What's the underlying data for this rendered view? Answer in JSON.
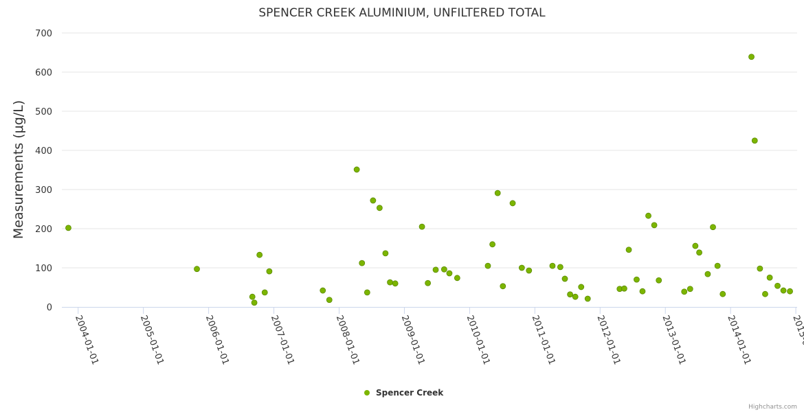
{
  "chart_data": {
    "type": "scatter",
    "title": "SPENCER CREEK ALUMINIUM, UNFILTERED TOTAL",
    "xlabel": "",
    "ylabel": "Measurements (μg/L)",
    "ylim": [
      0,
      700
    ],
    "xlim": [
      2003.75,
      2015.02
    ],
    "yticks": [
      0,
      100,
      200,
      300,
      400,
      500,
      600,
      700
    ],
    "xticks": [
      {
        "label": "2004-01-01",
        "value": 2004
      },
      {
        "label": "2005-01-01",
        "value": 2005
      },
      {
        "label": "2006-01-01",
        "value": 2006
      },
      {
        "label": "2007-01-01",
        "value": 2007
      },
      {
        "label": "2008-01-01",
        "value": 2008
      },
      {
        "label": "2009-01-01",
        "value": 2009
      },
      {
        "label": "2010-01-01",
        "value": 2010
      },
      {
        "label": "2011-01-01",
        "value": 2011
      },
      {
        "label": "2012-01-01",
        "value": 2012
      },
      {
        "label": "2013-01-01",
        "value": 2013
      },
      {
        "label": "2014-01-01",
        "value": 2014
      },
      {
        "label": "2015-01-01",
        "value": 2015
      }
    ],
    "grid": true,
    "legend_position": "bottom-center",
    "series": [
      {
        "name": "Spencer Creek",
        "color": "#7cb500",
        "x": [
          2003.85,
          2005.82,
          2006.67,
          2006.7,
          2006.78,
          2006.86,
          2006.93,
          2007.75,
          2007.85,
          2008.27,
          2008.35,
          2008.43,
          2008.52,
          2008.62,
          2008.71,
          2008.78,
          2008.86,
          2009.27,
          2009.36,
          2009.48,
          2009.61,
          2009.69,
          2009.81,
          2010.28,
          2010.35,
          2010.43,
          2010.51,
          2010.66,
          2010.8,
          2010.91,
          2011.27,
          2011.39,
          2011.46,
          2011.54,
          2011.62,
          2011.71,
          2011.81,
          2012.3,
          2012.37,
          2012.44,
          2012.56,
          2012.65,
          2012.74,
          2012.83,
          2012.9,
          2013.29,
          2013.38,
          2013.46,
          2013.52,
          2013.65,
          2013.73,
          2013.8,
          2013.88,
          2014.32,
          2014.37,
          2014.45,
          2014.53,
          2014.6,
          2014.72,
          2014.81,
          2014.91
        ],
        "y": [
          202,
          97,
          26,
          11,
          133,
          37,
          91,
          42,
          18,
          351,
          112,
          37,
          272,
          253,
          137,
          63,
          60,
          205,
          61,
          95,
          96,
          86,
          74,
          105,
          160,
          291,
          53,
          265,
          100,
          93,
          105,
          102,
          72,
          32,
          26,
          51,
          21,
          46,
          47,
          146,
          70,
          40,
          233,
          209,
          68,
          39,
          46,
          156,
          139,
          84,
          204,
          105,
          33,
          639,
          425,
          98,
          33,
          75,
          54,
          42,
          40
        ]
      }
    ]
  },
  "credit": "Highcharts.com"
}
